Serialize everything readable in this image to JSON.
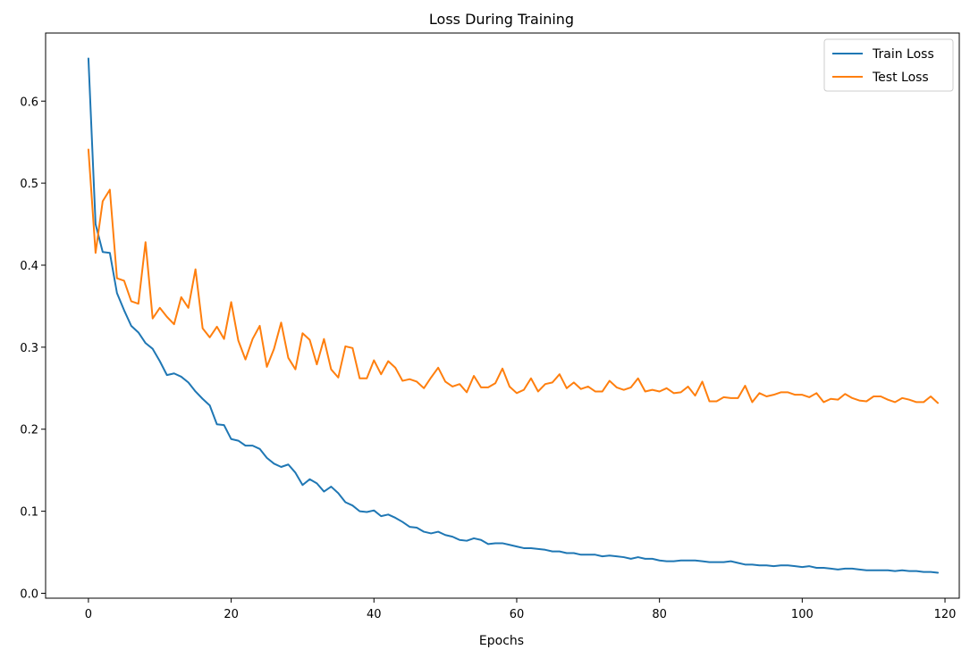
{
  "chart_data": {
    "type": "line",
    "title": "Loss During Training",
    "xlabel": "Epochs",
    "ylabel": "",
    "xlim": [
      -6,
      122
    ],
    "ylim": [
      -0.006,
      0.683
    ],
    "xticks": [
      0,
      20,
      40,
      60,
      80,
      100,
      120
    ],
    "yticks": [
      0.0,
      0.1,
      0.2,
      0.3,
      0.4,
      0.5,
      0.6
    ],
    "xtick_labels": [
      "0",
      "20",
      "40",
      "60",
      "80",
      "100",
      "120"
    ],
    "ytick_labels": [
      "0.0",
      "0.1",
      "0.2",
      "0.3",
      "0.4",
      "0.5",
      "0.6"
    ],
    "grid": false,
    "legend": "top-right",
    "x": [
      0,
      1,
      2,
      3,
      4,
      5,
      6,
      7,
      8,
      9,
      10,
      11,
      12,
      13,
      14,
      15,
      16,
      17,
      18,
      19,
      20,
      21,
      22,
      23,
      24,
      25,
      26,
      27,
      28,
      29,
      30,
      31,
      32,
      33,
      34,
      35,
      36,
      37,
      38,
      39,
      40,
      41,
      42,
      43,
      44,
      45,
      46,
      47,
      48,
      49,
      50,
      51,
      52,
      53,
      54,
      55,
      56,
      57,
      58,
      59,
      60,
      61,
      62,
      63,
      64,
      65,
      66,
      67,
      68,
      69,
      70,
      71,
      72,
      73,
      74,
      75,
      76,
      77,
      78,
      79,
      80,
      81,
      82,
      83,
      84,
      85,
      86,
      87,
      88,
      89,
      90,
      91,
      92,
      93,
      94,
      95,
      96,
      97,
      98,
      99,
      100,
      101,
      102,
      103,
      104,
      105,
      106,
      107,
      108,
      109,
      110,
      111,
      112,
      113,
      114,
      115,
      116,
      117,
      118,
      119
    ],
    "series": [
      {
        "name": "Train Loss",
        "color": "#1f77b4",
        "values": [
          0.652,
          0.45,
          0.416,
          0.415,
          0.366,
          0.345,
          0.326,
          0.318,
          0.305,
          0.298,
          0.283,
          0.266,
          0.268,
          0.264,
          0.257,
          0.246,
          0.237,
          0.229,
          0.206,
          0.205,
          0.188,
          0.186,
          0.18,
          0.18,
          0.176,
          0.165,
          0.158,
          0.154,
          0.157,
          0.147,
          0.132,
          0.139,
          0.134,
          0.124,
          0.13,
          0.122,
          0.111,
          0.107,
          0.1,
          0.099,
          0.101,
          0.094,
          0.096,
          0.092,
          0.087,
          0.081,
          0.08,
          0.075,
          0.073,
          0.075,
          0.071,
          0.069,
          0.065,
          0.064,
          0.067,
          0.065,
          0.06,
          0.061,
          0.061,
          0.059,
          0.057,
          0.055,
          0.055,
          0.054,
          0.053,
          0.051,
          0.051,
          0.049,
          0.049,
          0.047,
          0.047,
          0.047,
          0.045,
          0.046,
          0.045,
          0.044,
          0.042,
          0.044,
          0.042,
          0.042,
          0.04,
          0.039,
          0.039,
          0.04,
          0.04,
          0.04,
          0.039,
          0.038,
          0.038,
          0.038,
          0.039,
          0.037,
          0.035,
          0.035,
          0.034,
          0.034,
          0.033,
          0.034,
          0.034,
          0.033,
          0.032,
          0.033,
          0.031,
          0.031,
          0.03,
          0.029,
          0.03,
          0.03,
          0.029,
          0.028,
          0.028,
          0.028,
          0.028,
          0.027,
          0.028,
          0.027,
          0.027,
          0.026,
          0.026,
          0.025
        ]
      },
      {
        "name": "Test Loss",
        "color": "#ff7f0e",
        "values": [
          0.541,
          0.415,
          0.478,
          0.492,
          0.384,
          0.381,
          0.356,
          0.353,
          0.428,
          0.335,
          0.348,
          0.337,
          0.328,
          0.361,
          0.348,
          0.395,
          0.323,
          0.312,
          0.325,
          0.31,
          0.355,
          0.308,
          0.285,
          0.31,
          0.326,
          0.276,
          0.298,
          0.33,
          0.287,
          0.273,
          0.317,
          0.309,
          0.279,
          0.31,
          0.273,
          0.263,
          0.301,
          0.299,
          0.262,
          0.262,
          0.284,
          0.267,
          0.283,
          0.275,
          0.259,
          0.261,
          0.258,
          0.25,
          0.263,
          0.275,
          0.258,
          0.252,
          0.255,
          0.245,
          0.265,
          0.251,
          0.251,
          0.256,
          0.274,
          0.252,
          0.244,
          0.248,
          0.262,
          0.246,
          0.255,
          0.257,
          0.267,
          0.25,
          0.257,
          0.249,
          0.252,
          0.246,
          0.246,
          0.259,
          0.251,
          0.248,
          0.251,
          0.262,
          0.246,
          0.248,
          0.246,
          0.25,
          0.244,
          0.245,
          0.252,
          0.241,
          0.258,
          0.234,
          0.234,
          0.239,
          0.238,
          0.238,
          0.253,
          0.233,
          0.244,
          0.24,
          0.242,
          0.245,
          0.245,
          0.242,
          0.242,
          0.239,
          0.244,
          0.233,
          0.237,
          0.236,
          0.243,
          0.238,
          0.235,
          0.234,
          0.24,
          0.24,
          0.236,
          0.233,
          0.238,
          0.236,
          0.233,
          0.233,
          0.24,
          0.232
        ]
      }
    ]
  }
}
